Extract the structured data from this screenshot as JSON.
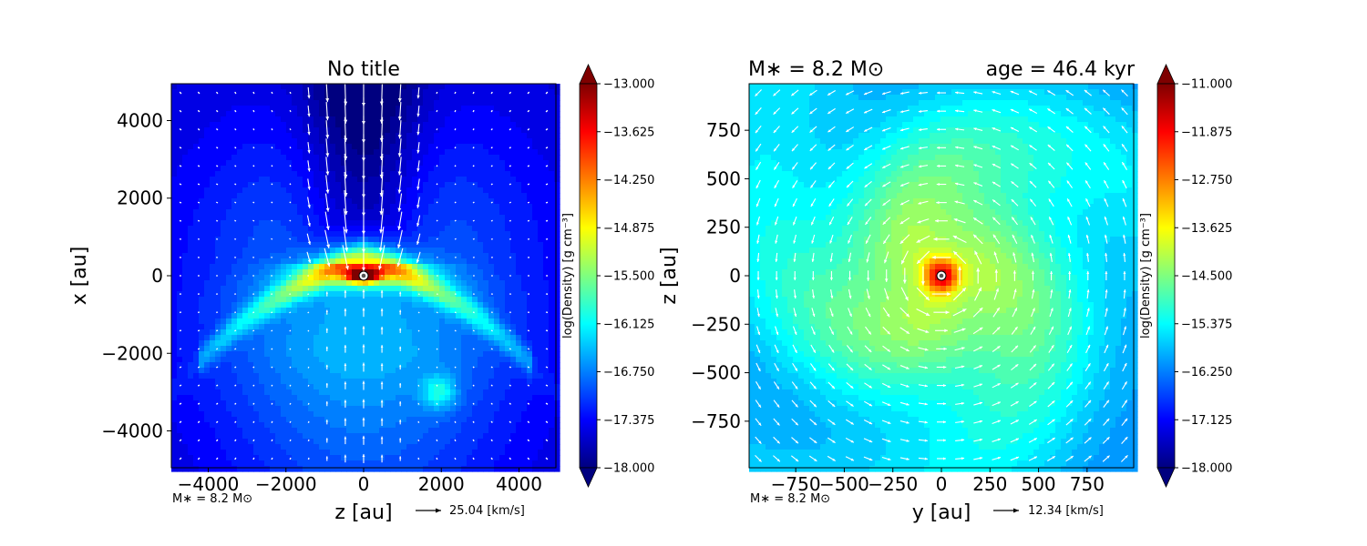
{
  "colors": {
    "jet_stops": [
      "#00007f",
      "#0000ff",
      "#007fff",
      "#00ffff",
      "#7fff7f",
      "#ffff00",
      "#ff7f00",
      "#ff0000",
      "#7f0000"
    ],
    "arrow": "#ffffff",
    "star_ring": "#ffffff",
    "star_core": "#555555"
  },
  "chart_data": [
    {
      "type": "heatmap",
      "subtype": "filled contour with velocity vectors",
      "title": "No title",
      "title_right": "",
      "xlabel": "z [au]",
      "ylabel": "x [au]",
      "xlim": [
        -4950,
        4950
      ],
      "ylim": [
        -4950,
        4950
      ],
      "xticks": [
        -4000,
        -2000,
        0,
        2000,
        4000
      ],
      "yticks": [
        -4000,
        -2000,
        0,
        2000,
        4000
      ],
      "xtick_labels": [
        "−4000",
        "−2000",
        "0",
        "2000",
        "4000"
      ],
      "ytick_labels": [
        "−4000",
        "−2000",
        "0",
        "2000",
        "4000"
      ],
      "colorbar": {
        "label": "log(Density) [g cm⁻³]",
        "min": -18.0,
        "max": -13.0,
        "tick_labels": [
          "−13.000",
          "−13.625",
          "−14.250",
          "−14.875",
          "−15.500",
          "−16.125",
          "−16.750",
          "−17.375",
          "−18.000"
        ],
        "extend": "both"
      },
      "annotation": "M∗ = 8.2 M⊙",
      "vector_key": {
        "label": "25.04 [km/s]",
        "speed": 25.04
      },
      "features": {
        "background_log_density": -17.6,
        "outflow_cavity": "low-density bipolar cavity along +x axis with strong inflow arrows toward star",
        "disk_plane": "dense X-shaped filaments crossing at origin, tails to z=±3500, x=−2000",
        "central_peak_log_density": -13.6,
        "clump": {
          "z": 1950,
          "x": -3000,
          "log_density": -15.9
        }
      }
    },
    {
      "type": "heatmap",
      "subtype": "filled contour with velocity vectors",
      "title": "M∗ = 8.2 M⊙",
      "title_right": "age = 46.4 kyr",
      "xlabel": "y [au]",
      "ylabel": "z [au]",
      "xlim": [
        -990,
        990
      ],
      "ylim": [
        -990,
        990
      ],
      "xticks": [
        -750,
        -500,
        -250,
        0,
        250,
        500,
        750
      ],
      "yticks": [
        -750,
        -500,
        -250,
        0,
        250,
        500,
        750
      ],
      "xtick_labels": [
        "−750",
        "−500",
        "−250",
        "0",
        "250",
        "500",
        "750"
      ],
      "ytick_labels": [
        "−750",
        "−500",
        "−250",
        "0",
        "250",
        "500",
        "750"
      ],
      "colorbar": {
        "label": "log(Density) [g cm⁻³]",
        "min": -18.0,
        "max": -11.0,
        "tick_labels": [
          "−11.000",
          "−11.875",
          "−12.750",
          "−13.625",
          "−14.500",
          "−15.375",
          "−16.250",
          "−17.125",
          "−18.000"
        ],
        "extend": "both"
      },
      "annotation": "M∗ = 8.2 M⊙",
      "vector_key": {
        "label": "12.34 [km/s]",
        "speed": 12.34
      },
      "features": {
        "rotation": "counter-clockwise swirling disk",
        "central_peak_log_density": -11.3,
        "disk_plateau_log_density": -14.0,
        "edge_log_density": -15.8
      }
    }
  ]
}
